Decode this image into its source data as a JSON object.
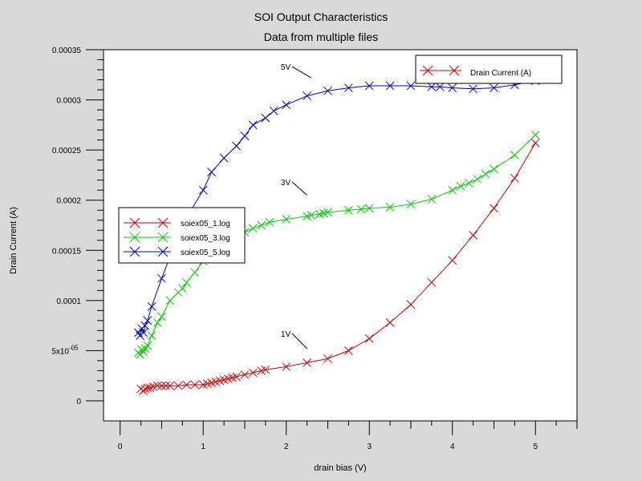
{
  "chart_data": {
    "type": "line",
    "title": "SOI Output Characteristics",
    "subtitle": "Data from multiple files",
    "xlabel": "drain bias (V)",
    "ylabel": "Drain Current (A)",
    "xlim": [
      -0.2,
      5.5
    ],
    "ylim": [
      -2e-05,
      0.00035
    ],
    "x_ticks": [
      0,
      1,
      2,
      3,
      4,
      5
    ],
    "x_tick_labels": [
      "0",
      "1",
      "2",
      "3",
      "4",
      "5"
    ],
    "y_ticks": [
      0,
      5e-05,
      0.0001,
      0.00015,
      0.0002,
      0.00025,
      0.0003,
      0.00035
    ],
    "y_tick_labels": [
      "0",
      "5x10",
      "0.0001",
      "0.00015",
      "0.0002",
      "0.00025",
      "0.0003",
      "0.00035"
    ],
    "y_tick_exponent": "-05",
    "marker": "x",
    "legend_placement": "center-left",
    "legend_top_label": "Drain Current (A)",
    "legend_top_color": "#cc0000",
    "series": [
      {
        "name": "soiex05_1.log",
        "color": "#cc0000",
        "x": [
          0.25,
          0.28,
          0.3,
          0.33,
          0.36,
          0.4,
          0.45,
          0.5,
          0.55,
          0.6,
          0.7,
          0.8,
          0.9,
          1.0,
          1.05,
          1.1,
          1.15,
          1.2,
          1.25,
          1.3,
          1.35,
          1.4,
          1.5,
          1.6,
          1.7,
          1.75,
          2.0,
          2.25,
          2.5,
          2.75,
          3.0,
          3.25,
          3.5,
          3.75,
          4.0,
          4.25,
          4.5,
          4.75,
          5.0
        ],
        "y": [
          1.2e-05,
          1e-05,
          1.2e-05,
          1.3e-05,
          1.3e-05,
          1.4e-05,
          1.5e-05,
          1.5e-05,
          1.5e-05,
          1.5e-05,
          1.5e-05,
          1.6e-05,
          1.6e-05,
          1.6e-05,
          1.7e-05,
          1.8e-05,
          1.9e-05,
          2e-05,
          2.1e-05,
          2.2e-05,
          2.3e-05,
          2.4e-05,
          2.6e-05,
          2.8e-05,
          3e-05,
          3.1e-05,
          3.4e-05,
          3.8e-05,
          4.2e-05,
          5e-05,
          6.2e-05,
          7.8e-05,
          9.6e-05,
          0.000118,
          0.00014,
          0.000165,
          0.000192,
          0.000222,
          0.000257
        ]
      },
      {
        "name": "soiex05_3.log",
        "color": "#00cc00",
        "x": [
          0.22,
          0.24,
          0.26,
          0.28,
          0.3,
          0.33,
          0.38,
          0.45,
          0.5,
          0.6,
          0.7,
          0.75,
          0.8,
          0.9,
          1.0,
          1.1,
          1.2,
          1.3,
          1.4,
          1.5,
          1.6,
          1.7,
          1.8,
          2.0,
          2.25,
          2.3,
          2.4,
          2.45,
          2.5,
          2.75,
          2.9,
          3.0,
          3.25,
          3.5,
          3.75,
          4.0,
          4.1,
          4.2,
          4.3,
          4.4,
          4.5,
          4.75,
          5.0
        ],
        "y": [
          4.8e-05,
          4.6e-05,
          5.1e-05,
          4.9e-05,
          5.2e-05,
          5.5e-05,
          6.5e-05,
          7.8e-05,
          8.4e-05,
          0.0001,
          0.000108,
          0.000112,
          0.000118,
          0.000128,
          0.000139,
          0.000148,
          0.000155,
          0.00016,
          0.000164,
          0.000168,
          0.000172,
          0.000175,
          0.000178,
          0.000181,
          0.000184,
          0.000185,
          0.000186,
          0.000187,
          0.000188,
          0.00019,
          0.000191,
          0.000192,
          0.000193,
          0.000196,
          0.000201,
          0.00021,
          0.000214,
          0.000217,
          0.000221,
          0.000226,
          0.000231,
          0.000245,
          0.000265
        ]
      },
      {
        "name": "soiex05_5.log",
        "color": "#0000cc",
        "x": [
          0.22,
          0.24,
          0.26,
          0.28,
          0.3,
          0.33,
          0.38,
          0.5,
          0.75,
          1.0,
          1.1,
          1.25,
          1.4,
          1.5,
          1.6,
          1.75,
          1.85,
          2.0,
          2.25,
          2.5,
          2.75,
          3.0,
          3.25,
          3.5,
          3.75,
          3.85,
          4.0,
          4.25,
          4.5,
          4.75,
          5.0
        ],
        "y": [
          6.8e-05,
          6.5e-05,
          7.2e-05,
          6.8e-05,
          7.5e-05,
          8e-05,
          9.4e-05,
          0.000122,
          0.000176,
          0.00021,
          0.000228,
          0.000242,
          0.000254,
          0.000264,
          0.000275,
          0.000282,
          0.000289,
          0.000295,
          0.000304,
          0.000309,
          0.000312,
          0.000314,
          0.000314,
          0.000314,
          0.000313,
          0.000313,
          0.000312,
          0.000311,
          0.000312,
          0.000315,
          0.000319
        ]
      }
    ],
    "annotations": [
      {
        "text": "5V",
        "at_x": 2.05,
        "at_y": 0.00033,
        "line_to_x": 2.3,
        "line_to_y": 0.000322
      },
      {
        "text": "3V",
        "at_x": 2.05,
        "at_y": 0.000215,
        "line_to_x": 2.25,
        "line_to_y": 0.000205
      },
      {
        "text": "1V",
        "at_x": 2.05,
        "at_y": 6.4e-05,
        "line_to_x": 2.25,
        "line_to_y": 5.2e-05
      }
    ]
  }
}
